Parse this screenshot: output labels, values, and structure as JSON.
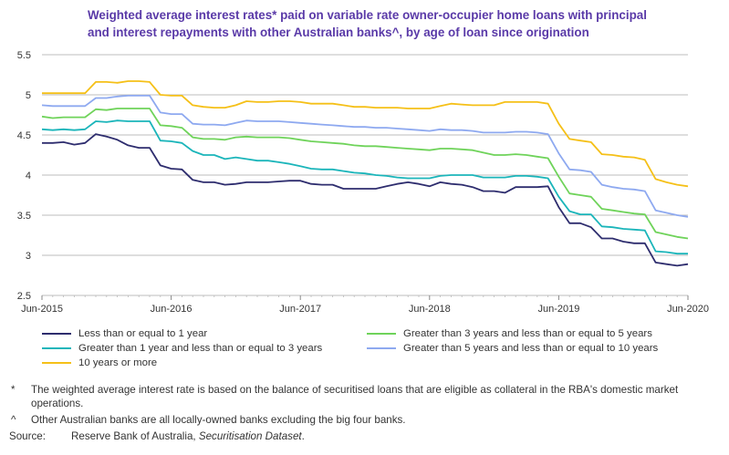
{
  "title": {
    "line1": "Weighted average interest rates* paid on variable rate owner-occupier home loans with principal",
    "line2": "and interest repayments with other Australian banks^, by age of loan since origination"
  },
  "footnotes": [
    {
      "mark": "*",
      "text": "The weighted average interest rate is based on the balance of securitised loans that are eligible as collateral in the RBA's domestic market operations."
    },
    {
      "mark": "^",
      "text": "Other Australian banks are all locally-owned banks excluding the big four banks."
    }
  ],
  "source": {
    "label": "Source:",
    "text_plain": "Reserve Bank of Australia, ",
    "text_italic": "Securitisation Dataset",
    "text_end": "."
  },
  "chart_data": {
    "type": "line",
    "x_tick_labels": [
      "Jun-2015",
      "Jun-2016",
      "Jun-2017",
      "Jun-2018",
      "Jun-2019",
      "Jun-2020"
    ],
    "y_tick_labels": [
      "2.5",
      "3",
      "3.5",
      "4",
      "4.5",
      "5",
      "5.5"
    ],
    "ylim": [
      2.5,
      5.5
    ],
    "grid": true,
    "legend_placement": "bottom",
    "x_months": [
      "Jun-2015",
      "Jul-2015",
      "Aug-2015",
      "Sep-2015",
      "Oct-2015",
      "Nov-2015",
      "Dec-2015",
      "Jan-2016",
      "Feb-2016",
      "Mar-2016",
      "Apr-2016",
      "May-2016",
      "Jun-2016",
      "Jul-2016",
      "Aug-2016",
      "Sep-2016",
      "Oct-2016",
      "Nov-2016",
      "Dec-2016",
      "Jan-2017",
      "Feb-2017",
      "Mar-2017",
      "Apr-2017",
      "May-2017",
      "Jun-2017",
      "Jul-2017",
      "Aug-2017",
      "Sep-2017",
      "Oct-2017",
      "Nov-2017",
      "Dec-2017",
      "Jan-2018",
      "Feb-2018",
      "Mar-2018",
      "Apr-2018",
      "May-2018",
      "Jun-2018",
      "Jul-2018",
      "Aug-2018",
      "Sep-2018",
      "Oct-2018",
      "Nov-2018",
      "Dec-2018",
      "Jan-2019",
      "Feb-2019",
      "Mar-2019",
      "Apr-2019",
      "May-2019",
      "Jun-2019",
      "Jul-2019",
      "Aug-2019",
      "Sep-2019",
      "Oct-2019",
      "Nov-2019",
      "Dec-2019",
      "Jan-2020",
      "Feb-2020",
      "Mar-2020",
      "Apr-2020",
      "May-2020",
      "Jun-2020"
    ],
    "series": [
      {
        "name": "Less than or equal to 1 year",
        "color": "#2e2d6e",
        "values": [
          4.4,
          4.4,
          4.41,
          4.38,
          4.4,
          4.51,
          4.48,
          4.44,
          4.37,
          4.34,
          4.34,
          4.12,
          4.08,
          4.07,
          3.94,
          3.91,
          3.91,
          3.88,
          3.89,
          3.91,
          3.91,
          3.91,
          3.92,
          3.93,
          3.93,
          3.89,
          3.88,
          3.88,
          3.83,
          3.83,
          3.83,
          3.83,
          3.86,
          3.89,
          3.91,
          3.89,
          3.86,
          3.91,
          3.89,
          3.88,
          3.85,
          3.8,
          3.8,
          3.78,
          3.85,
          3.85,
          3.85,
          3.86,
          3.6,
          3.4,
          3.4,
          3.35,
          3.21,
          3.21,
          3.17,
          3.15,
          3.15,
          2.91,
          2.89,
          2.87,
          2.89
        ]
      },
      {
        "name": "Greater than 1 year and less than or equal to 3 years",
        "color": "#1bb5ba",
        "values": [
          4.57,
          4.56,
          4.57,
          4.56,
          4.57,
          4.67,
          4.66,
          4.68,
          4.67,
          4.67,
          4.67,
          4.43,
          4.42,
          4.4,
          4.3,
          4.25,
          4.25,
          4.2,
          4.22,
          4.2,
          4.18,
          4.18,
          4.16,
          4.14,
          4.11,
          4.08,
          4.07,
          4.07,
          4.05,
          4.03,
          4.02,
          4.0,
          3.99,
          3.97,
          3.96,
          3.96,
          3.96,
          3.99,
          4.0,
          4.0,
          4.0,
          3.97,
          3.97,
          3.97,
          3.99,
          3.99,
          3.98,
          3.96,
          3.73,
          3.55,
          3.51,
          3.51,
          3.36,
          3.35,
          3.33,
          3.32,
          3.31,
          3.05,
          3.04,
          3.02,
          3.02
        ]
      },
      {
        "name": "10 years or more",
        "color": "#f5c018",
        "values": [
          5.02,
          5.02,
          5.02,
          5.02,
          5.02,
          5.16,
          5.16,
          5.15,
          5.17,
          5.17,
          5.16,
          5.0,
          4.99,
          4.99,
          4.87,
          4.85,
          4.84,
          4.84,
          4.87,
          4.92,
          4.91,
          4.91,
          4.92,
          4.92,
          4.91,
          4.89,
          4.89,
          4.89,
          4.87,
          4.85,
          4.85,
          4.84,
          4.84,
          4.84,
          4.83,
          4.83,
          4.83,
          4.86,
          4.89,
          4.88,
          4.87,
          4.87,
          4.87,
          4.91,
          4.91,
          4.91,
          4.91,
          4.89,
          4.64,
          4.45,
          4.43,
          4.41,
          4.26,
          4.25,
          4.23,
          4.22,
          4.19,
          3.95,
          3.91,
          3.88,
          3.86
        ]
      },
      {
        "name": "Greater than 3 years and less than or equal to 5 years",
        "color": "#6fd35a",
        "values": [
          4.73,
          4.71,
          4.72,
          4.72,
          4.72,
          4.82,
          4.81,
          4.83,
          4.83,
          4.83,
          4.83,
          4.62,
          4.61,
          4.59,
          4.47,
          4.45,
          4.45,
          4.44,
          4.47,
          4.48,
          4.47,
          4.47,
          4.47,
          4.46,
          4.44,
          4.42,
          4.41,
          4.4,
          4.39,
          4.37,
          4.36,
          4.36,
          4.35,
          4.34,
          4.33,
          4.32,
          4.31,
          4.33,
          4.33,
          4.32,
          4.31,
          4.28,
          4.25,
          4.25,
          4.26,
          4.25,
          4.23,
          4.21,
          3.98,
          3.77,
          3.75,
          3.73,
          3.58,
          3.56,
          3.54,
          3.52,
          3.51,
          3.29,
          3.26,
          3.23,
          3.21
        ]
      },
      {
        "name": "Greater than 5 years and less than or equal to 10 years",
        "color": "#8ea9f0",
        "values": [
          4.87,
          4.86,
          4.86,
          4.86,
          4.86,
          4.96,
          4.96,
          4.98,
          4.99,
          4.99,
          4.99,
          4.78,
          4.76,
          4.76,
          4.64,
          4.63,
          4.63,
          4.62,
          4.65,
          4.68,
          4.67,
          4.67,
          4.67,
          4.66,
          4.65,
          4.64,
          4.63,
          4.62,
          4.61,
          4.6,
          4.6,
          4.59,
          4.59,
          4.58,
          4.57,
          4.56,
          4.55,
          4.57,
          4.56,
          4.56,
          4.55,
          4.53,
          4.53,
          4.53,
          4.54,
          4.54,
          4.53,
          4.51,
          4.27,
          4.07,
          4.06,
          4.04,
          3.88,
          3.85,
          3.83,
          3.82,
          3.8,
          3.56,
          3.53,
          3.5,
          3.48
        ]
      }
    ]
  }
}
